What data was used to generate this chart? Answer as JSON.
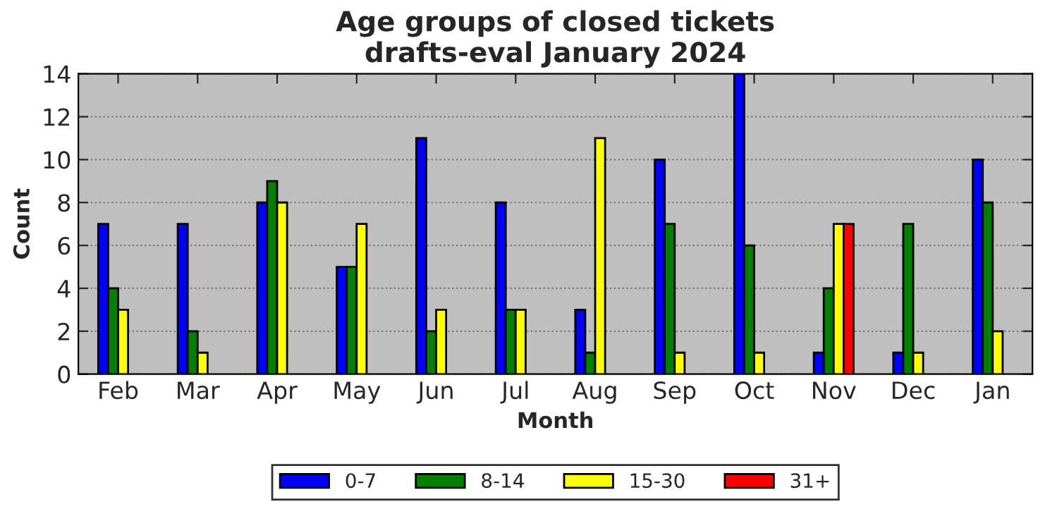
{
  "chart_data": {
    "type": "bar",
    "title": "Age groups of closed tickets\ndrafts-eval January 2024",
    "xlabel": "Month",
    "ylabel": "Count",
    "categories": [
      "Feb",
      "Mar",
      "Apr",
      "May",
      "Jun",
      "Jul",
      "Aug",
      "Sep",
      "Oct",
      "Nov",
      "Dec",
      "Jan"
    ],
    "series": [
      {
        "name": "0-7",
        "color": "#0000ff",
        "values": [
          7,
          7,
          8,
          5,
          11,
          8,
          3,
          10,
          14,
          1,
          1,
          10
        ]
      },
      {
        "name": "8-14",
        "color": "#008000",
        "values": [
          4,
          2,
          9,
          5,
          2,
          3,
          1,
          7,
          6,
          4,
          7,
          8
        ]
      },
      {
        "name": "15-30",
        "color": "#ffff00",
        "values": [
          3,
          1,
          8,
          7,
          3,
          3,
          11,
          1,
          1,
          7,
          1,
          2
        ]
      },
      {
        "name": "31+",
        "color": "#ff0000",
        "values": [
          0,
          0,
          0,
          0,
          0,
          0,
          0,
          0,
          0,
          7,
          0,
          0
        ]
      }
    ],
    "ylim": [
      0,
      14
    ],
    "yticks": [
      0,
      2,
      4,
      6,
      8,
      10,
      12,
      14
    ],
    "grid": "y",
    "legend": "bottom"
  }
}
